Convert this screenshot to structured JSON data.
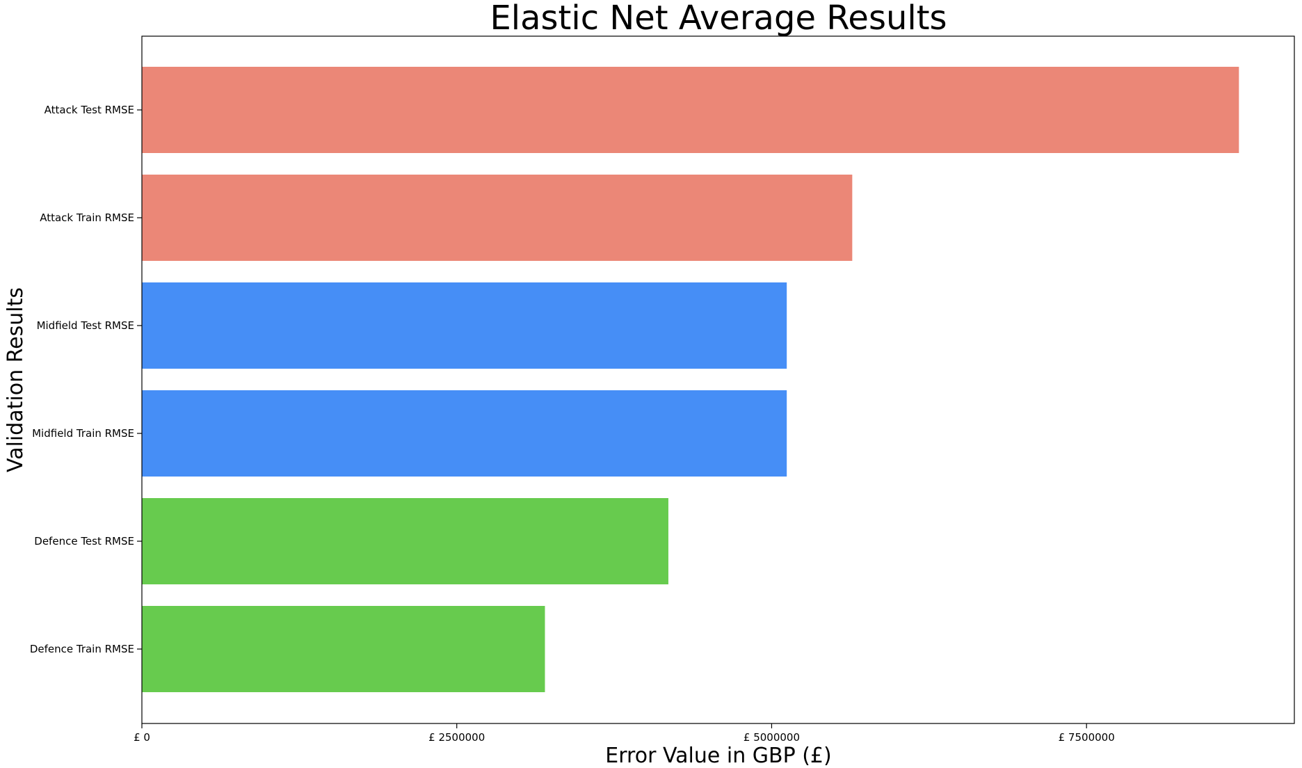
{
  "chart_data": {
    "type": "bar",
    "orientation": "horizontal",
    "title": "Elastic Net Average Results",
    "xlabel": "Error Value in GBP (£)",
    "ylabel": "Validation Results",
    "categories": [
      "Attack Test RMSE",
      "Attack Train RMSE",
      "Midfield Test RMSE",
      "Midfield Train RMSE",
      "Defence Test RMSE",
      "Defence Train RMSE"
    ],
    "values": [
      8710000,
      5640000,
      5120000,
      5120000,
      4180000,
      3200000
    ],
    "colors": [
      "#eb8777",
      "#eb8777",
      "#468ef6",
      "#468ef6",
      "#67cb4e",
      "#67cb4e"
    ],
    "xlim": [
      0,
      9150000
    ],
    "xticks": [
      0,
      2500000,
      5000000,
      7500000
    ],
    "xtick_labels": [
      "£ 0",
      "£ 2500000",
      "£ 5000000",
      "£ 7500000"
    ],
    "grid": false,
    "legend": "none"
  }
}
